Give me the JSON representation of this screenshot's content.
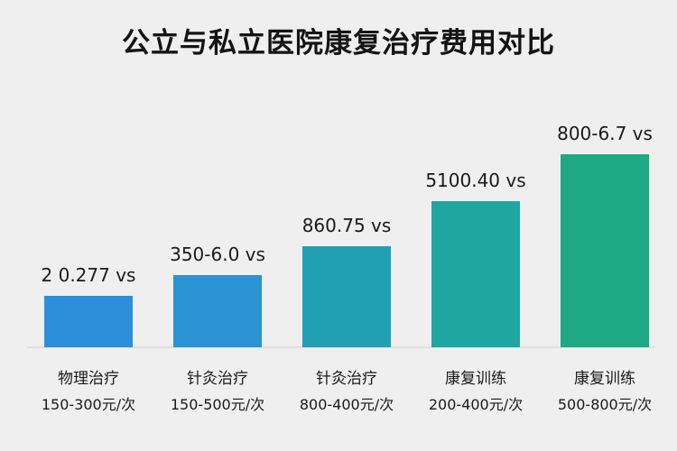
{
  "chart_data": {
    "type": "bar",
    "title": "公立与私立医院康复治疗费用对比",
    "categories": [
      "物理治疗",
      "针灸治疗",
      "针灸治疗",
      "康复训练",
      "康复训练"
    ],
    "price_ranges": [
      "150-300元/次",
      "150-500元/次",
      "800-400元/次",
      "200-400元/次",
      "500-800元/次"
    ],
    "bar_labels": [
      "2 0.277 vs",
      "350-6.0 vs",
      "860.75 vs",
      "5100.40 vs",
      "800-6.7 vs"
    ],
    "values": [
      57,
      80,
      112,
      162,
      214
    ],
    "ylim": [
      0,
      235
    ],
    "bar_colors": [
      "#2d8fd9",
      "#2b93d3",
      "#21a0b3",
      "#1fa6a1",
      "#1ea883"
    ],
    "xlabel": "",
    "ylabel": "",
    "grid": false
  }
}
